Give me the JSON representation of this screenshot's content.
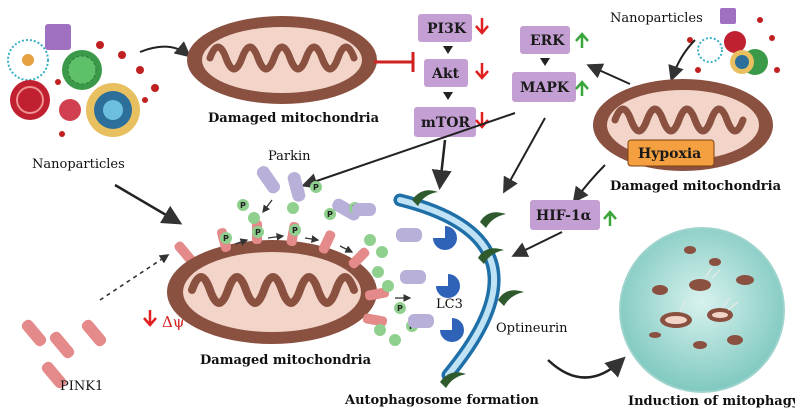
{
  "labels": {
    "nanoparticles_left": "Nanoparticles",
    "nanoparticles_right": "Nanoparticles",
    "damaged_top": "Damaged mitochondria",
    "damaged_right": "Damaged mitochondria",
    "damaged_bottom": "Damaged mitochondria",
    "parkin": "Parkin",
    "pink1": "PINK1",
    "delta_psi": "Δψ",
    "lc3": "LC3",
    "optineurin": "Optineurin",
    "autophagosome": "Autophagosome formation",
    "induction": "Induction of mitophagy",
    "hypoxia": "Hypoxia",
    "phospho": "P"
  },
  "pathway": {
    "pi3k": "PI3K",
    "akt": "Akt",
    "mtor": "mTOR",
    "erk": "ERK",
    "mapk": "MAPK",
    "hif1a": "HIF-1α"
  },
  "colors": {
    "box": "#c49fd3",
    "mito_outer": "#8a5040",
    "mito_inner": "#f2d5c8",
    "down_arrow": "#e02020",
    "up_arrow": "#3aa63a",
    "pink1": "#e58a8a",
    "parkin": "#b8b0d8",
    "lc3": "#2f63b8",
    "optineurin": "#2e5a2e",
    "phospho": "#8fd08f",
    "vesicle": "#bfe8e3"
  }
}
